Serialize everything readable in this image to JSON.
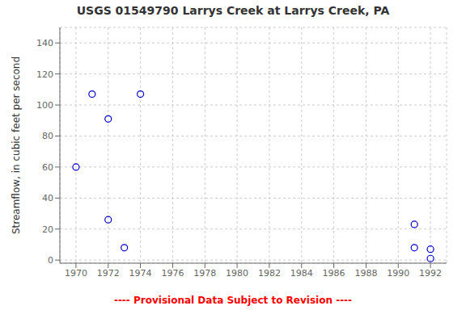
{
  "chart_data": {
    "type": "scatter",
    "title": "USGS 01549790 Larrys Creek at Larrys Creek, PA",
    "ylabel": "Streamflow, in cubic feet per second",
    "x": [
      1970,
      1971,
      1972,
      1972,
      1973,
      1974,
      1991,
      1991,
      1992,
      1992
    ],
    "values": [
      60,
      107,
      91,
      26,
      8,
      107,
      23,
      8,
      7,
      1
    ],
    "color": "#0000CC",
    "marker": "open_circle",
    "xlim": [
      1969.0,
      1993.0
    ],
    "ylim": [
      -2,
      150
    ],
    "xticks": [
      1970,
      1972,
      1974,
      1976,
      1978,
      1980,
      1982,
      1984,
      1986,
      1988,
      1990,
      1992
    ],
    "yticks": [
      0,
      20,
      40,
      60,
      80,
      100,
      120,
      140
    ],
    "grid": true,
    "annotations": [
      {
        "text": "---- Provisional Data Subject to Revision ----",
        "color": "#FF0000"
      }
    ]
  }
}
